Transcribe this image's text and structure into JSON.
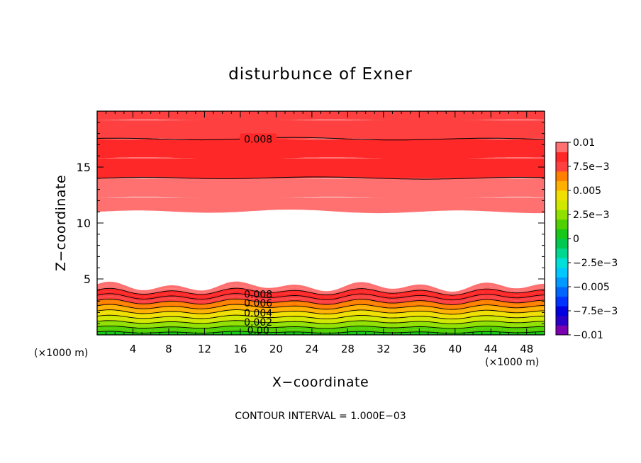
{
  "chart_data": {
    "type": "heatmap",
    "title": "disturbunce of Exner",
    "xlabel": "X−coordinate",
    "ylabel": "Z−coordinate",
    "x_unit_left": "(×1000 m)",
    "x_unit_right": "(×1000 m)",
    "xlim": [
      0,
      50
    ],
    "ylim": [
      0,
      20
    ],
    "x_ticks": [
      4,
      8,
      12,
      16,
      20,
      24,
      28,
      32,
      36,
      40,
      44,
      48
    ],
    "y_ticks": [
      5,
      10,
      15
    ],
    "color_levels": [
      -0.01,
      -0.009,
      -0.008,
      -0.007,
      -0.006,
      -0.005,
      -0.004,
      -0.003,
      -0.002,
      -0.001,
      0,
      0.001,
      0.002,
      0.003,
      0.004,
      0.005,
      0.006,
      0.007,
      0.008,
      0.009,
      0.01
    ],
    "color_bands": [
      "#7a00b0",
      "#2a00c8",
      "#0000e0",
      "#0033ff",
      "#0066ff",
      "#0099ff",
      "#00c8ff",
      "#00e0d8",
      "#00d890",
      "#00c850",
      "#18c818",
      "#50d000",
      "#90e000",
      "#d0e800",
      "#f0e000",
      "#ffb000",
      "#ff8000",
      "#ff4040",
      "#ff2828",
      "#ff7070",
      "#ff9a9a"
    ],
    "colorbar_labels": [
      "0.01",
      "7.5e−3",
      "0.005",
      "2.5e−3",
      "0",
      "−2.5e−3",
      "−0.005",
      "−7.5e−3",
      "−0.01"
    ],
    "colorbar_values": [
      0.01,
      0.0075,
      0.005,
      0.0025,
      0,
      -0.0025,
      -0.005,
      -0.0075,
      -0.01
    ],
    "upper_layer": {
      "z_bottom": 11.0,
      "z_top": 20,
      "band_values": [
        0.0095,
        0.009,
        0.0085,
        0.008,
        0.0075,
        0.007
      ],
      "band_tops": [
        12.3,
        14.0,
        15.8,
        17.5,
        19.2,
        20
      ]
    },
    "lower_layer": {
      "z_top": 4.3,
      "band_values": [
        0.0095,
        0.009,
        0.0085,
        0.008,
        0.0075,
        0.007,
        0.0065,
        0.006,
        0.0055,
        0.005,
        0.0045,
        0.004,
        0.0035,
        0.003,
        0.0025,
        0.002,
        0.0015,
        0.001,
        0.0005
      ]
    },
    "contour_labels": [
      {
        "text": "0.008",
        "x": 18,
        "z": 17.5
      },
      {
        "text": "0.008",
        "x": 18,
        "z": 3.65
      },
      {
        "text": "0.006",
        "x": 18,
        "z": 2.85
      },
      {
        "text": "0.004",
        "x": 18,
        "z": 1.95
      },
      {
        "text": "0.002",
        "x": 18,
        "z": 1.15
      },
      {
        "text": "0.00",
        "x": 18,
        "z": 0.4
      }
    ],
    "annotation": "CONTOUR INTERVAL = 1.000E−03"
  }
}
